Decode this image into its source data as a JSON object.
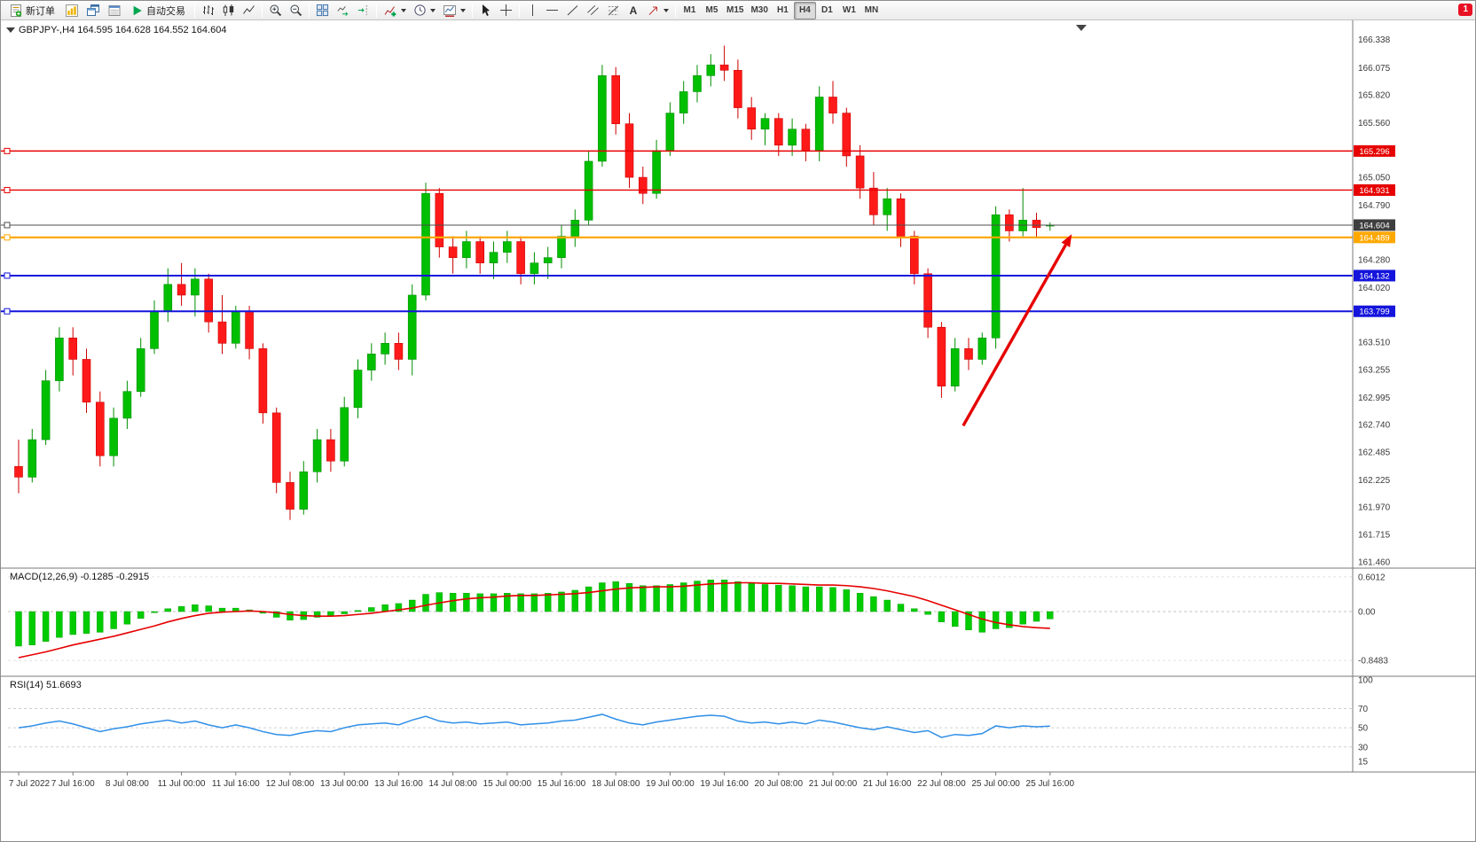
{
  "toolbar": {
    "new_order_label": "新订单",
    "auto_trading_label": "自动交易",
    "text_tool_label": "A",
    "timeframes": [
      "M1",
      "M5",
      "M15",
      "M30",
      "H1",
      "H4",
      "D1",
      "W1",
      "MN"
    ],
    "active_timeframe": "H4",
    "notification_count": "1"
  },
  "chart": {
    "symbol_title": "GBPJPY-,H4 164.595 164.628 164.552 164.604",
    "macd_label": "MACD(12,26,9) -0.1285 -0.2915",
    "rsi_label": "RSI(14) 51.6693"
  },
  "chart_data": {
    "type": "candlestick",
    "symbol": "GBPJPY-",
    "timeframe": "H4",
    "ohlc": {
      "open": 164.595,
      "high": 164.628,
      "low": 164.552,
      "close": 164.604
    },
    "colors": {
      "bull": "#00bf00",
      "bear": "#ff1a1a",
      "bull_edge": "#008f00",
      "bear_edge": "#cc0000",
      "macd_hist": "#00cc00",
      "macd_signal": "#e60000",
      "rsi_line": "#2f8fe8",
      "divider": "#7a7a7a",
      "axis_text": "#3a3a3a"
    },
    "price_axis": {
      "min": 161.4,
      "max": 166.4,
      "tick_labels": [
        "166.338",
        "166.075",
        "165.820",
        "165.560",
        "165.050",
        "164.790",
        "164.280",
        "164.020",
        "163.510",
        "163.255",
        "162.995",
        "162.740",
        "162.485",
        "162.225",
        "161.970",
        "161.715",
        "161.460"
      ]
    },
    "hlines": [
      {
        "price": 165.296,
        "label": "165.296",
        "color": "#e60000",
        "width": 1.4
      },
      {
        "price": 164.931,
        "label": "164.931",
        "color": "#e60000",
        "width": 1.4
      },
      {
        "price": 164.604,
        "label": "164.604",
        "color": "#4d4d4d",
        "width": 1,
        "current": true
      },
      {
        "price": 164.489,
        "label": "164.489",
        "color": "#ffa800",
        "width": 2.2
      },
      {
        "price": 164.132,
        "label": "164.132",
        "color": "#1414dc",
        "width": 2
      },
      {
        "price": 163.799,
        "label": "163.799",
        "color": "#1414dc",
        "width": 2
      }
    ],
    "candles": [
      [
        162.35,
        162.6,
        162.1,
        162.25
      ],
      [
        162.25,
        162.7,
        162.2,
        162.6
      ],
      [
        162.6,
        163.25,
        162.55,
        163.15
      ],
      [
        163.15,
        163.65,
        163.05,
        163.55
      ],
      [
        163.55,
        163.65,
        163.2,
        163.35
      ],
      [
        163.35,
        163.45,
        162.85,
        162.95
      ],
      [
        162.95,
        163.05,
        162.35,
        162.45
      ],
      [
        162.45,
        162.9,
        162.35,
        162.8
      ],
      [
        162.8,
        163.15,
        162.7,
        163.05
      ],
      [
        163.05,
        163.55,
        163.0,
        163.45
      ],
      [
        163.45,
        163.9,
        163.4,
        163.8
      ],
      [
        163.8,
        164.2,
        163.7,
        164.05
      ],
      [
        164.05,
        164.25,
        163.85,
        163.95
      ],
      [
        163.95,
        164.2,
        163.75,
        164.1
      ],
      [
        164.1,
        164.15,
        163.6,
        163.7
      ],
      [
        163.7,
        163.95,
        163.4,
        163.5
      ],
      [
        163.5,
        163.85,
        163.45,
        163.8
      ],
      [
        163.8,
        163.85,
        163.35,
        163.45
      ],
      [
        163.45,
        163.5,
        162.75,
        162.85
      ],
      [
        162.85,
        162.9,
        162.1,
        162.2
      ],
      [
        162.2,
        162.3,
        161.85,
        161.95
      ],
      [
        161.95,
        162.4,
        161.9,
        162.3
      ],
      [
        162.3,
        162.7,
        162.2,
        162.6
      ],
      [
        162.6,
        162.7,
        162.3,
        162.4
      ],
      [
        162.4,
        163.0,
        162.35,
        162.9
      ],
      [
        162.9,
        163.35,
        162.8,
        163.25
      ],
      [
        163.25,
        163.5,
        163.15,
        163.4
      ],
      [
        163.4,
        163.6,
        163.3,
        163.5
      ],
      [
        163.5,
        163.6,
        163.25,
        163.35
      ],
      [
        163.35,
        164.05,
        163.2,
        163.95
      ],
      [
        163.95,
        165.0,
        163.9,
        164.9
      ],
      [
        164.9,
        164.95,
        164.3,
        164.4
      ],
      [
        164.4,
        164.5,
        164.15,
        164.3
      ],
      [
        164.3,
        164.55,
        164.2,
        164.45
      ],
      [
        164.45,
        164.5,
        164.15,
        164.25
      ],
      [
        164.25,
        164.45,
        164.1,
        164.35
      ],
      [
        164.35,
        164.55,
        164.25,
        164.45
      ],
      [
        164.45,
        164.5,
        164.05,
        164.15
      ],
      [
        164.15,
        164.35,
        164.05,
        164.25
      ],
      [
        164.25,
        164.4,
        164.1,
        164.3
      ],
      [
        164.3,
        164.6,
        164.2,
        164.5
      ],
      [
        164.5,
        164.75,
        164.4,
        164.65
      ],
      [
        164.65,
        165.3,
        164.6,
        165.2
      ],
      [
        165.2,
        166.1,
        165.15,
        166.0
      ],
      [
        166.0,
        166.08,
        165.45,
        165.55
      ],
      [
        165.55,
        165.65,
        164.95,
        165.05
      ],
      [
        165.05,
        165.15,
        164.8,
        164.9
      ],
      [
        164.9,
        165.4,
        164.85,
        165.3
      ],
      [
        165.3,
        165.75,
        165.25,
        165.65
      ],
      [
        165.65,
        165.95,
        165.55,
        165.85
      ],
      [
        165.85,
        166.1,
        165.75,
        166.0
      ],
      [
        166.0,
        166.2,
        165.9,
        166.1
      ],
      [
        166.1,
        166.28,
        165.95,
        166.05
      ],
      [
        166.05,
        166.15,
        165.6,
        165.7
      ],
      [
        165.7,
        165.8,
        165.4,
        165.5
      ],
      [
        165.5,
        165.65,
        165.35,
        165.6
      ],
      [
        165.6,
        165.65,
        165.25,
        165.35
      ],
      [
        165.35,
        165.6,
        165.25,
        165.5
      ],
      [
        165.5,
        165.55,
        165.2,
        165.3
      ],
      [
        165.3,
        165.9,
        165.2,
        165.8
      ],
      [
        165.8,
        165.95,
        165.55,
        165.65
      ],
      [
        165.65,
        165.7,
        165.15,
        165.25
      ],
      [
        165.25,
        165.35,
        164.85,
        164.95
      ],
      [
        164.95,
        165.1,
        164.6,
        164.7
      ],
      [
        164.7,
        164.95,
        164.55,
        164.85
      ],
      [
        164.85,
        164.9,
        164.4,
        164.5
      ],
      [
        164.5,
        164.55,
        164.05,
        164.15
      ],
      [
        164.15,
        164.2,
        163.55,
        163.65
      ],
      [
        163.65,
        163.7,
        162.99,
        163.1
      ],
      [
        163.1,
        163.55,
        163.05,
        163.45
      ],
      [
        163.45,
        163.55,
        163.25,
        163.35
      ],
      [
        163.35,
        163.6,
        163.3,
        163.55
      ],
      [
        163.55,
        164.78,
        163.45,
        164.7
      ],
      [
        164.7,
        164.75,
        164.45,
        164.55
      ],
      [
        164.55,
        164.95,
        164.5,
        164.65
      ],
      [
        164.65,
        164.72,
        164.48,
        164.58
      ],
      [
        164.595,
        164.628,
        164.552,
        164.604
      ]
    ],
    "time_labels": [
      [
        "7 Jul 2022",
        0
      ],
      [
        "7 Jul 16:00",
        4
      ],
      [
        "8 Jul 08:00",
        8
      ],
      [
        "11 Jul 00:00",
        12
      ],
      [
        "11 Jul 16:00",
        16
      ],
      [
        "12 Jul 08:00",
        20
      ],
      [
        "13 Jul 00:00",
        24
      ],
      [
        "13 Jul 16:00",
        28
      ],
      [
        "14 Jul 08:00",
        32
      ],
      [
        "15 Jul 00:00",
        36
      ],
      [
        "15 Jul 16:00",
        40
      ],
      [
        "18 Jul 08:00",
        44
      ],
      [
        "19 Jul 00:00",
        48
      ],
      [
        "19 Jul 16:00",
        52
      ],
      [
        "20 Jul 08:00",
        56
      ],
      [
        "21 Jul 00:00",
        60
      ],
      [
        "21 Jul 16:00",
        64
      ],
      [
        "22 Jul 08:00",
        68
      ],
      [
        "25 Jul 00:00",
        72
      ],
      [
        "25 Jul 16:00",
        76
      ]
    ],
    "arrow": {
      "from_candle": 69.6,
      "from_price": 162.73,
      "to_candle": 77.6,
      "to_price": 164.52,
      "color": "#e60000"
    },
    "macd": {
      "label": "MACD(12,26,9)",
      "value": -0.1285,
      "signal_value": -0.2915,
      "scale": [
        {
          "v": 0.6012,
          "label": "0.6012"
        },
        {
          "v": 0,
          "label": "0.00"
        },
        {
          "v": -0.8483,
          "label": "-0.8483"
        }
      ],
      "histogram": [
        -0.6,
        -0.58,
        -0.52,
        -0.45,
        -0.4,
        -0.38,
        -0.36,
        -0.3,
        -0.22,
        -0.12,
        -0.02,
        0.05,
        0.09,
        0.12,
        0.1,
        0.06,
        0.06,
        0.03,
        -0.03,
        -0.1,
        -0.15,
        -0.14,
        -0.1,
        -0.08,
        -0.04,
        0.02,
        0.07,
        0.12,
        0.14,
        0.2,
        0.3,
        0.33,
        0.32,
        0.32,
        0.31,
        0.31,
        0.32,
        0.31,
        0.31,
        0.32,
        0.34,
        0.37,
        0.43,
        0.5,
        0.52,
        0.49,
        0.45,
        0.45,
        0.47,
        0.5,
        0.53,
        0.55,
        0.55,
        0.52,
        0.49,
        0.47,
        0.46,
        0.45,
        0.43,
        0.43,
        0.42,
        0.38,
        0.32,
        0.26,
        0.2,
        0.13,
        0.05,
        -0.05,
        -0.18,
        -0.26,
        -0.32,
        -0.36,
        -0.3,
        -0.28,
        -0.22,
        -0.17,
        -0.1285
      ],
      "signal": [
        -0.8,
        -0.75,
        -0.7,
        -0.64,
        -0.58,
        -0.53,
        -0.48,
        -0.43,
        -0.37,
        -0.31,
        -0.25,
        -0.18,
        -0.12,
        -0.07,
        -0.03,
        -0.01,
        0.0,
        0.01,
        0.0,
        -0.02,
        -0.05,
        -0.07,
        -0.08,
        -0.08,
        -0.07,
        -0.05,
        -0.03,
        0.0,
        0.03,
        0.06,
        0.11,
        0.15,
        0.19,
        0.22,
        0.24,
        0.25,
        0.27,
        0.28,
        0.28,
        0.29,
        0.3,
        0.31,
        0.33,
        0.36,
        0.39,
        0.41,
        0.42,
        0.43,
        0.43,
        0.44,
        0.46,
        0.48,
        0.49,
        0.5,
        0.5,
        0.49,
        0.49,
        0.48,
        0.47,
        0.46,
        0.46,
        0.45,
        0.43,
        0.4,
        0.36,
        0.31,
        0.26,
        0.19,
        0.11,
        0.03,
        -0.05,
        -0.13,
        -0.19,
        -0.23,
        -0.26,
        -0.28,
        -0.2915
      ]
    },
    "rsi": {
      "label": "RSI(14)",
      "value": 51.6693,
      "scale": [
        {
          "v": 100,
          "label": "100"
        },
        {
          "v": 70,
          "label": "70"
        },
        {
          "v": 50,
          "label": "50"
        },
        {
          "v": 30,
          "label": "30"
        },
        {
          "v": 15,
          "label": "15"
        }
      ],
      "levels": [
        70,
        50,
        30
      ],
      "values": [
        50,
        52,
        55,
        57,
        54,
        50,
        46,
        49,
        51,
        54,
        56,
        58,
        55,
        57,
        53,
        50,
        53,
        50,
        46,
        43,
        42,
        45,
        47,
        46,
        50,
        53,
        54,
        55,
        53,
        58,
        62,
        57,
        55,
        56,
        54,
        55,
        56,
        53,
        54,
        55,
        57,
        58,
        61,
        64,
        59,
        55,
        53,
        56,
        58,
        60,
        62,
        63,
        62,
        57,
        55,
        56,
        54,
        56,
        54,
        58,
        56,
        53,
        50,
        48,
        51,
        48,
        45,
        47,
        40,
        43,
        42,
        44,
        52,
        50,
        52,
        51,
        51.67
      ]
    }
  }
}
